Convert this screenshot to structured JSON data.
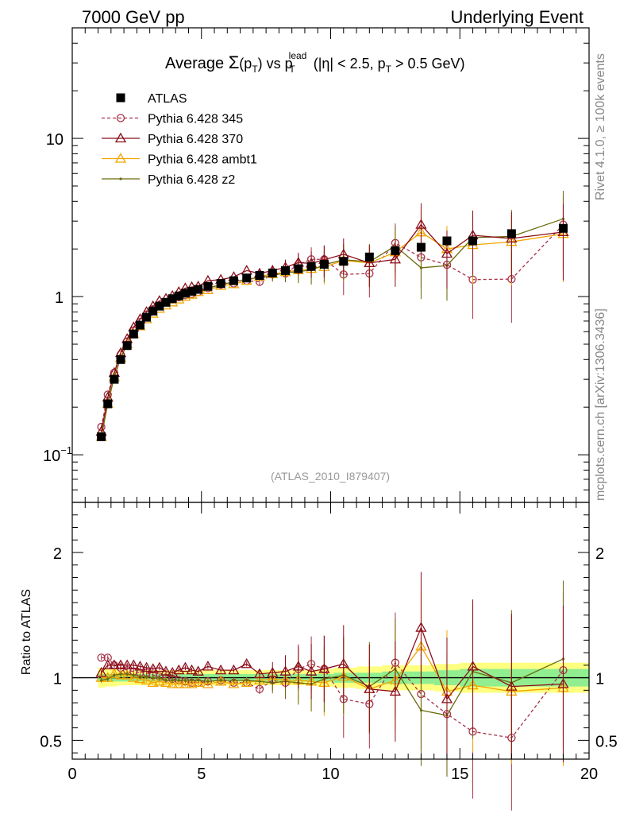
{
  "header": {
    "left": "7000 GeV pp",
    "right": "Underlying Event"
  },
  "side": {
    "rivet": "Rivet 4.1.0, ≥ 100k events",
    "mcplots": "mcplots.cern.ch [arXiv:1306.3436]"
  },
  "title": {
    "prefix": "Average ",
    "sigma": "Σ",
    "paren_open": "(p",
    "sub_t": "T",
    "paren_close": ")",
    "vs": " vs p",
    "sup_lead": "lead",
    "rest": " (|η| < 2.5, p",
    "rest2": " > 0.5 GeV)"
  },
  "analysis_tag": "(ATLAS_2010_I879407)",
  "colors": {
    "data": "#000000",
    "p345": "#a83248",
    "p370": "#8b0e1a",
    "ambt1": "#f2a500",
    "z2": "#6b6b0c",
    "band_inner": "#90ee90",
    "band_outer": "#ffff80"
  },
  "chart_data": [
    {
      "type": "scatter",
      "panel": "main",
      "title": "Average Σ(pT) vs pT lead (|η| < 2.5, pT > 0.5 GeV)",
      "yscale": "log",
      "xlim": [
        0,
        20
      ],
      "ylim": [
        0.05,
        50
      ],
      "yticks": [
        {
          "v": 0.1,
          "base": "10",
          "exp": "−1"
        },
        {
          "v": 1,
          "base": "1",
          "exp": ""
        },
        {
          "v": 10,
          "base": "10",
          "exp": ""
        }
      ],
      "x": [
        1.125,
        1.375,
        1.625,
        1.875,
        2.125,
        2.375,
        2.625,
        2.875,
        3.125,
        3.375,
        3.625,
        3.875,
        4.125,
        4.375,
        4.625,
        4.875,
        5.25,
        5.75,
        6.25,
        6.75,
        7.25,
        7.75,
        8.25,
        8.75,
        9.25,
        9.75,
        10.5,
        11.5,
        12.5,
        13.5,
        14.5,
        15.5,
        17.0,
        19.0
      ],
      "series": [
        {
          "name": "ATLAS",
          "key": "data",
          "style": "data",
          "values": [
            0.13,
            0.21,
            0.3,
            0.4,
            0.49,
            0.58,
            0.66,
            0.74,
            0.81,
            0.87,
            0.92,
            0.97,
            1.01,
            1.05,
            1.08,
            1.11,
            1.16,
            1.21,
            1.26,
            1.31,
            1.36,
            1.41,
            1.46,
            1.5,
            1.55,
            1.6,
            1.67,
            1.78,
            1.95,
            2.05,
            2.25,
            2.25,
            2.5,
            2.7
          ]
        },
        {
          "name": "Pythia 6.428 345",
          "key": "p345",
          "style": "dashed-circle",
          "values": [
            0.15,
            0.24,
            0.33,
            0.43,
            0.52,
            0.61,
            0.69,
            0.77,
            0.83,
            0.88,
            0.92,
            0.96,
            0.99,
            1.02,
            1.04,
            1.07,
            1.13,
            1.19,
            1.21,
            1.26,
            1.24,
            1.38,
            1.4,
            1.6,
            1.72,
            1.72,
            1.38,
            1.4,
            2.18,
            1.77,
            1.59,
            1.28,
            1.29,
            2.85
          ]
        },
        {
          "name": "Pythia 6.428 370",
          "key": "p370",
          "style": "solid-triangle",
          "values": [
            0.14,
            0.23,
            0.33,
            0.44,
            0.54,
            0.64,
            0.72,
            0.8,
            0.87,
            0.94,
            0.97,
            1.01,
            1.07,
            1.13,
            1.15,
            1.16,
            1.26,
            1.28,
            1.33,
            1.46,
            1.4,
            1.46,
            1.53,
            1.64,
            1.62,
            1.71,
            1.85,
            1.63,
            1.72,
            2.85,
            1.87,
            2.44,
            2.33,
            2.56
          ]
        },
        {
          "name": "Pythia 6.428 ambt1",
          "key": "ambt1",
          "style": "solid-triangle",
          "values": [
            0.13,
            0.21,
            0.31,
            0.41,
            0.5,
            0.58,
            0.65,
            0.72,
            0.78,
            0.84,
            0.88,
            0.92,
            0.96,
            1.0,
            1.03,
            1.07,
            1.1,
            1.17,
            1.2,
            1.26,
            1.34,
            1.39,
            1.43,
            1.47,
            1.5,
            1.54,
            1.69,
            1.63,
            1.91,
            2.55,
            2.0,
            2.12,
            2.22,
            2.49
          ]
        },
        {
          "name": "Pythia 6.428 z2",
          "key": "z2",
          "style": "solid-dot",
          "values": [
            0.13,
            0.21,
            0.31,
            0.41,
            0.5,
            0.59,
            0.67,
            0.75,
            0.81,
            0.87,
            0.9,
            0.95,
            0.99,
            1.03,
            1.06,
            1.09,
            1.13,
            1.19,
            1.24,
            1.29,
            1.32,
            1.36,
            1.41,
            1.44,
            1.47,
            1.59,
            1.71,
            1.66,
            2.09,
            1.52,
            1.57,
            2.36,
            2.4,
            3.1
          ]
        }
      ]
    },
    {
      "type": "scatter",
      "panel": "ratio",
      "ylabel": "Ratio to ATLAS",
      "xlim": [
        0,
        20
      ],
      "ylim": [
        0.35,
        2.4
      ],
      "xticks": [
        0,
        5,
        10,
        15,
        20
      ],
      "yticks": [
        0.5,
        1,
        2
      ],
      "x": [
        1.125,
        1.375,
        1.625,
        1.875,
        2.125,
        2.375,
        2.625,
        2.875,
        3.125,
        3.375,
        3.625,
        3.875,
        4.125,
        4.375,
        4.625,
        4.875,
        5.25,
        5.75,
        6.25,
        6.75,
        7.25,
        7.75,
        8.25,
        8.75,
        9.25,
        9.75,
        10.5,
        11.5,
        12.5,
        13.5,
        14.5,
        15.5,
        17.0,
        19.0
      ],
      "band_inner": [
        0.03,
        0.03,
        0.03,
        0.03,
        0.03,
        0.03,
        0.03,
        0.03,
        0.03,
        0.03,
        0.03,
        0.03,
        0.03,
        0.03,
        0.03,
        0.03,
        0.03,
        0.03,
        0.03,
        0.03,
        0.03,
        0.03,
        0.03,
        0.03,
        0.03,
        0.03,
        0.04,
        0.04,
        0.05,
        0.05,
        0.06,
        0.07,
        0.07,
        0.07
      ],
      "band_outer": [
        0.08,
        0.07,
        0.07,
        0.06,
        0.06,
        0.06,
        0.06,
        0.06,
        0.06,
        0.06,
        0.06,
        0.06,
        0.06,
        0.06,
        0.06,
        0.06,
        0.06,
        0.06,
        0.06,
        0.06,
        0.06,
        0.06,
        0.06,
        0.06,
        0.06,
        0.07,
        0.08,
        0.09,
        0.1,
        0.1,
        0.11,
        0.12,
        0.12,
        0.12
      ],
      "series": [
        {
          "name": "Pythia 6.428 345",
          "key": "p345",
          "style": "dashed-circle",
          "values": [
            1.16,
            1.16,
            1.1,
            1.08,
            1.06,
            1.05,
            1.04,
            1.04,
            1.02,
            1.01,
            1.0,
            0.99,
            0.98,
            0.97,
            0.96,
            0.96,
            0.97,
            0.98,
            0.96,
            0.96,
            0.91,
            0.98,
            0.96,
            1.07,
            1.11,
            1.07,
            0.83,
            0.79,
            1.12,
            0.87,
            0.71,
            0.57,
            0.52,
            1.06
          ]
        },
        {
          "name": "Pythia 6.428 370",
          "key": "p370",
          "style": "solid-triangle",
          "values": [
            1.04,
            1.1,
            1.1,
            1.1,
            1.1,
            1.1,
            1.09,
            1.08,
            1.07,
            1.08,
            1.05,
            1.04,
            1.06,
            1.08,
            1.06,
            1.05,
            1.09,
            1.06,
            1.06,
            1.11,
            1.03,
            1.04,
            1.05,
            1.09,
            1.05,
            1.07,
            1.11,
            0.91,
            0.89,
            1.4,
            0.83,
            1.09,
            0.93,
            0.95
          ]
        },
        {
          "name": "Pythia 6.428 ambt1",
          "key": "ambt1",
          "style": "solid-triangle",
          "values": [
            1.0,
            1.0,
            1.03,
            1.02,
            1.02,
            1.0,
            0.99,
            0.98,
            0.96,
            0.97,
            0.96,
            0.95,
            0.95,
            0.95,
            0.95,
            0.96,
            0.95,
            0.97,
            0.95,
            0.96,
            0.98,
            0.99,
            0.98,
            0.98,
            0.97,
            0.96,
            1.01,
            0.91,
            0.98,
            1.25,
            0.89,
            0.94,
            0.89,
            0.92
          ]
        },
        {
          "name": "Pythia 6.428 z2",
          "key": "z2",
          "style": "solid-dot",
          "values": [
            0.98,
            0.99,
            1.02,
            1.03,
            1.03,
            1.02,
            1.01,
            1.01,
            1.0,
            1.0,
            0.98,
            0.98,
            0.98,
            0.98,
            0.98,
            0.98,
            0.97,
            0.98,
            0.98,
            0.98,
            0.97,
            0.96,
            0.97,
            0.96,
            0.95,
            0.99,
            1.02,
            0.93,
            1.07,
            0.74,
            0.7,
            1.05,
            0.96,
            1.15
          ]
        }
      ]
    }
  ],
  "legend": [
    {
      "label": "ATLAS",
      "key": "data",
      "style": "data"
    },
    {
      "label": "Pythia 6.428 345",
      "key": "p345",
      "style": "dashed-circle"
    },
    {
      "label": "Pythia 6.428 370",
      "key": "p370",
      "style": "solid-triangle"
    },
    {
      "label": "Pythia 6.428 ambt1",
      "key": "ambt1",
      "style": "solid-triangle"
    },
    {
      "label": "Pythia 6.428 z2",
      "key": "z2",
      "style": "solid-dot"
    }
  ]
}
